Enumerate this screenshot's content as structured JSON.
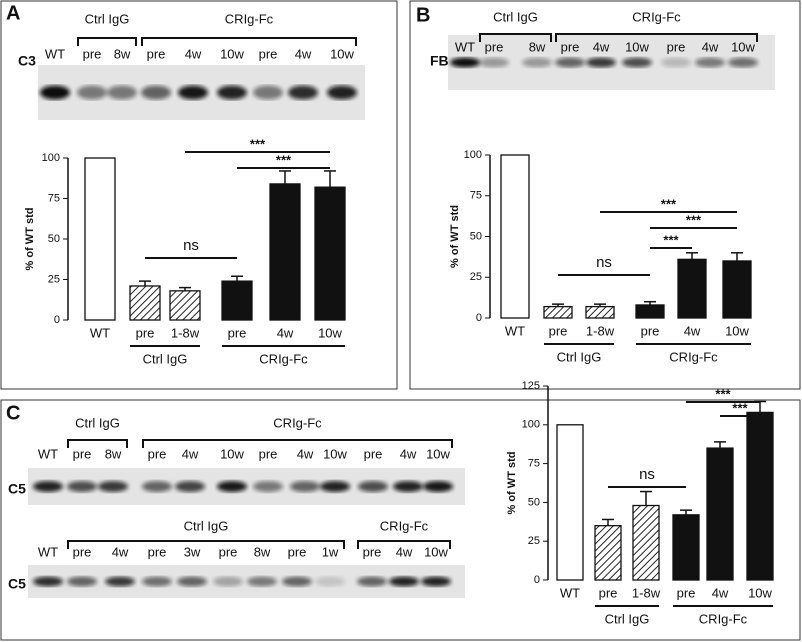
{
  "panels": [
    "A",
    "B",
    "C"
  ],
  "blots": [
    {
      "protein": "C3",
      "groups": [
        "Ctrl IgG",
        "CRIg-Fc"
      ],
      "lanes": [
        "WT",
        "pre",
        "8w",
        "pre",
        "4w",
        "10w",
        "pre",
        "4w",
        "10w"
      ]
    },
    {
      "protein": "FB",
      "groups": [
        "Ctrl IgG",
        "CRIg-Fc"
      ],
      "lanes": [
        "WT",
        "pre",
        "8w",
        "pre",
        "4w",
        "10w",
        "pre",
        "4w",
        "10w"
      ]
    },
    {
      "protein": "C5",
      "groups": [
        "Ctrl IgG",
        "CRIg-Fc"
      ],
      "lanes": [
        "WT",
        "pre",
        "8w",
        "pre",
        "4w",
        "10w",
        "pre",
        "4w",
        "10w",
        "pre",
        "4w",
        "10w"
      ]
    },
    {
      "protein": "C5",
      "groups": [
        "Ctrl IgG",
        "CRIg-Fc"
      ],
      "lanes": [
        "WT",
        "pre",
        "4w",
        "pre",
        "3w",
        "pre",
        "8w",
        "pre",
        "1w",
        "pre",
        "4w",
        "10w"
      ]
    }
  ],
  "chart_data": [
    {
      "type": "bar",
      "y_label": "% of WT std",
      "categories": [
        "WT",
        "pre",
        "1-8w",
        "pre",
        "4w",
        "10w"
      ],
      "groups": [
        "Ctrl IgG",
        "CRIg-Fc"
      ],
      "values": [
        100,
        21,
        18,
        24,
        84,
        82
      ],
      "errors": [
        0,
        3,
        2,
        3,
        8,
        10
      ],
      "ylim": [
        0,
        100
      ],
      "yticks": [
        0,
        25,
        50,
        75,
        100
      ],
      "annotations": [
        "ns",
        "***",
        "***"
      ]
    },
    {
      "type": "bar",
      "y_label": "% of WT std",
      "categories": [
        "WT",
        "pre",
        "1-8w",
        "pre",
        "4w",
        "10w"
      ],
      "groups": [
        "Ctrl IgG",
        "CRIg-Fc"
      ],
      "values": [
        100,
        7,
        7,
        8,
        36,
        35
      ],
      "errors": [
        0,
        1.5,
        1.5,
        2,
        4,
        5
      ],
      "ylim": [
        0,
        100
      ],
      "yticks": [
        0,
        25,
        50,
        75,
        100
      ],
      "annotations": [
        "ns",
        "***",
        "***",
        "***"
      ]
    },
    {
      "type": "bar",
      "y_label": "% of WT std",
      "categories": [
        "WT",
        "pre",
        "1-8w",
        "pre",
        "4w",
        "10w"
      ],
      "groups": [
        "Ctrl IgG",
        "CRIg-Fc"
      ],
      "values": [
        100,
        35,
        48,
        42,
        85,
        108
      ],
      "errors": [
        0,
        4,
        9,
        3,
        4,
        7
      ],
      "ylim": [
        0,
        125
      ],
      "yticks": [
        0,
        25,
        50,
        75,
        100,
        125
      ],
      "annotations": [
        "ns",
        "***",
        "***"
      ]
    }
  ]
}
